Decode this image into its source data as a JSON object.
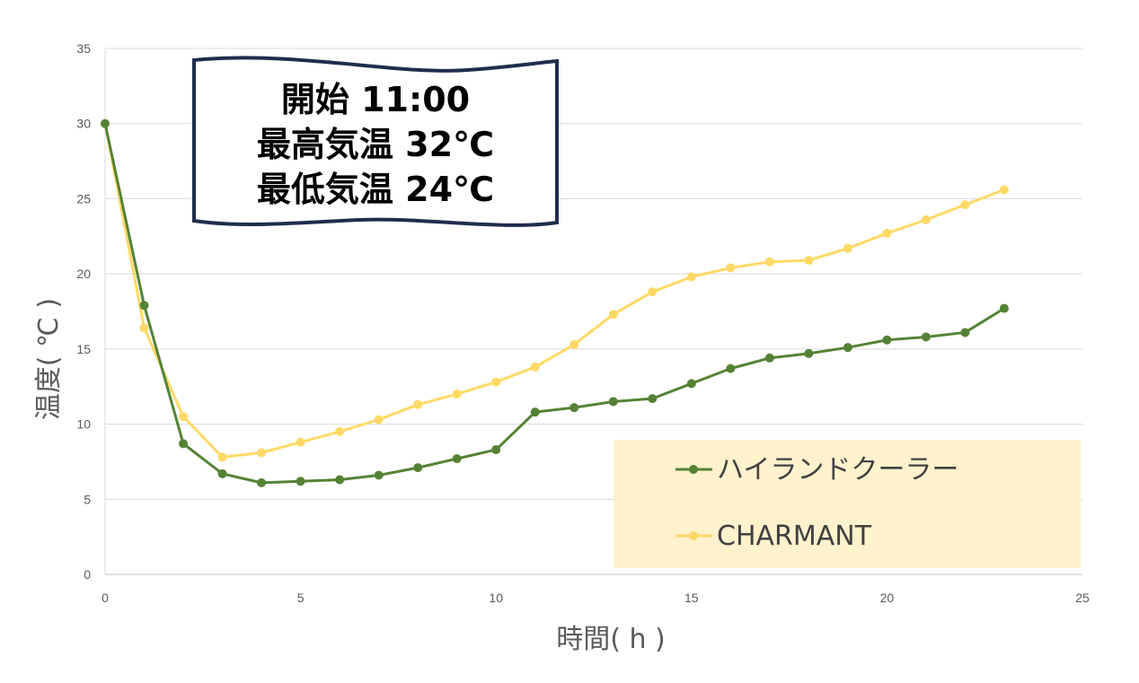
{
  "info_box": {
    "lines": [
      "開始 11:00",
      "最高気温 32℃",
      "最低気温 24℃"
    ]
  },
  "chart_data": {
    "type": "line",
    "title": "",
    "xlabel": "時間( h )",
    "ylabel": "温度( ℃ )",
    "xlim": [
      0,
      25
    ],
    "ylim": [
      0,
      35
    ],
    "x_ticks": [
      0,
      5,
      10,
      15,
      20,
      25
    ],
    "y_ticks": [
      0,
      5,
      10,
      15,
      20,
      25,
      30,
      35
    ],
    "grid": "horizontal",
    "legend_position": "bottom-right",
    "series": [
      {
        "name": "ハイランドクーラー",
        "color": "#548235",
        "x": [
          0,
          1,
          2,
          3,
          4,
          5,
          6,
          7,
          8,
          9,
          10,
          11,
          12,
          13,
          14,
          15,
          16,
          17,
          18,
          19,
          20,
          21,
          22,
          23
        ],
        "values": [
          30,
          17.9,
          8.7,
          6.7,
          6.1,
          6.2,
          6.3,
          6.6,
          7.1,
          7.7,
          8.3,
          10.8,
          11.1,
          11.5,
          11.7,
          12.7,
          13.7,
          14.4,
          14.7,
          15.1,
          15.6,
          15.8,
          16.1,
          17.7
        ]
      },
      {
        "name": "CHARMANT",
        "color": "#FFD966",
        "x": [
          0,
          1,
          2,
          3,
          4,
          5,
          6,
          7,
          8,
          9,
          10,
          11,
          12,
          13,
          14,
          15,
          16,
          17,
          18,
          19,
          20,
          21,
          22,
          23
        ],
        "values": [
          30,
          16.4,
          10.5,
          7.8,
          8.1,
          8.8,
          9.5,
          10.3,
          11.3,
          12.0,
          12.8,
          13.8,
          15.3,
          17.3,
          18.8,
          19.8,
          20.4,
          20.8,
          20.9,
          21.7,
          22.7,
          23.6,
          24.6,
          25.6
        ]
      }
    ]
  }
}
